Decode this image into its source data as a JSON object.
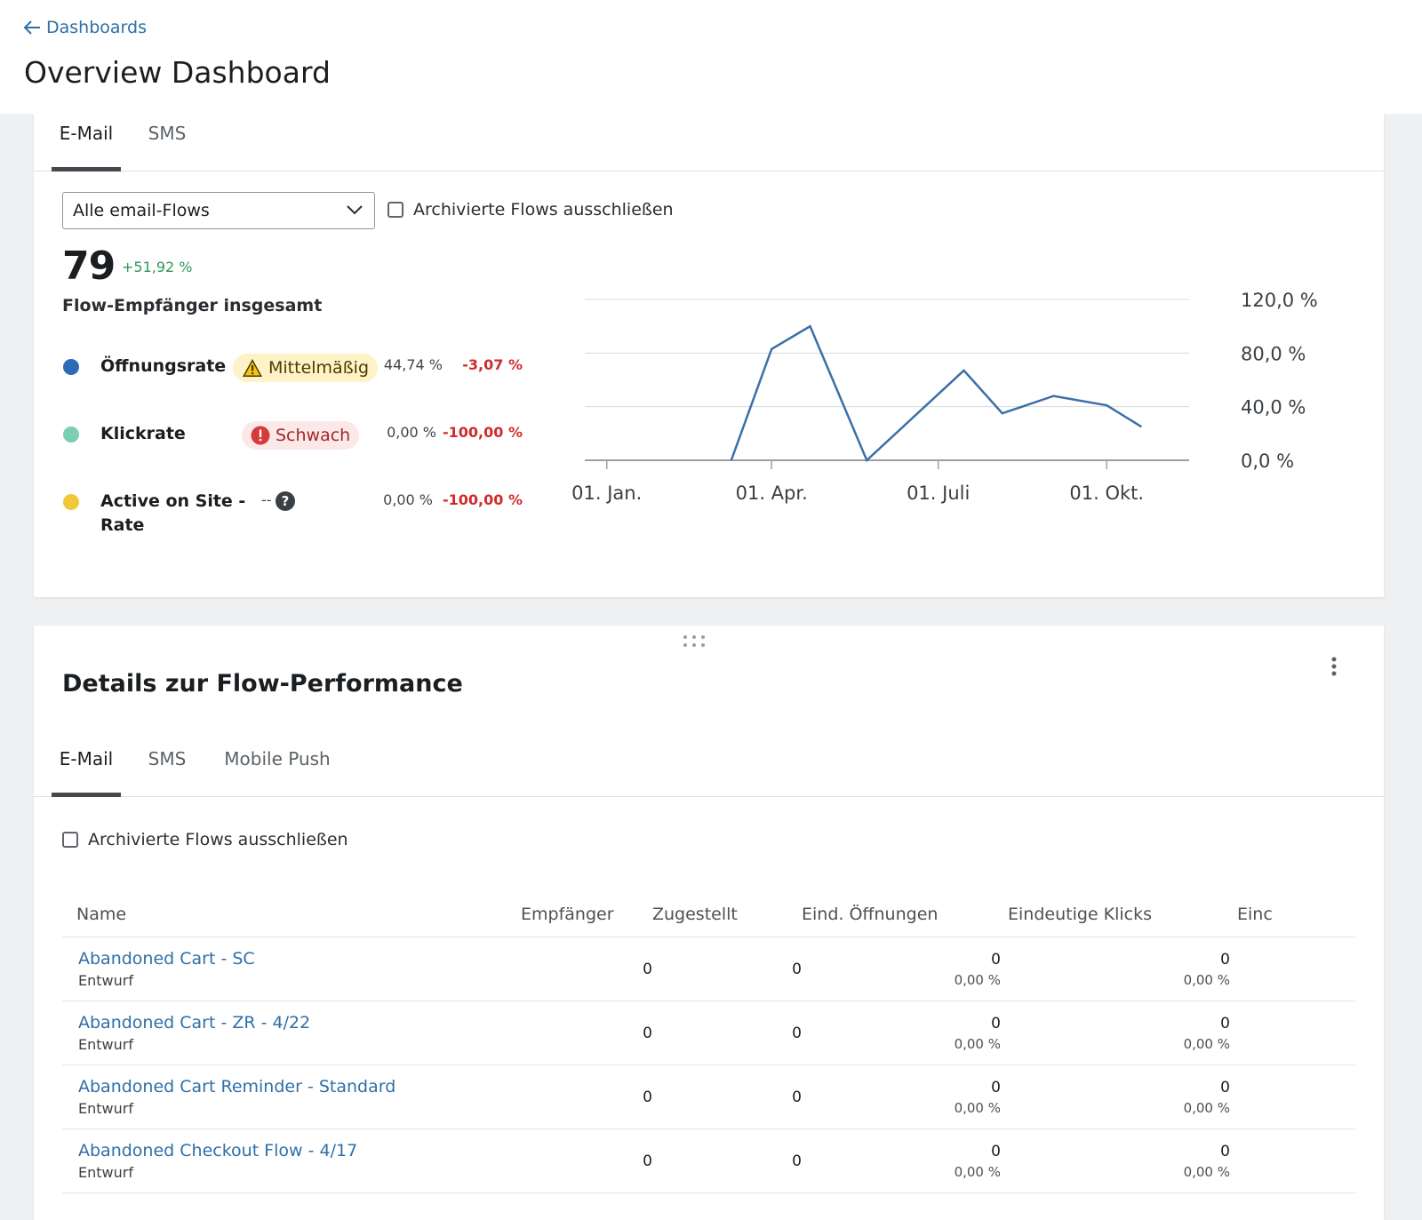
{
  "header": {
    "back_label": "Dashboards",
    "title": "Overview Dashboard"
  },
  "overview_card": {
    "tabs": [
      {
        "label": "E-Mail",
        "active": true
      },
      {
        "label": "SMS",
        "active": false
      }
    ],
    "flow_select": {
      "value": "Alle email-Flows"
    },
    "exclude_archived": {
      "label": "Archivierte Flows ausschließen",
      "checked": false
    },
    "total": {
      "value": "79",
      "change": "+51,92 %",
      "label": "Flow-Empfänger insgesamt"
    },
    "metrics": [
      {
        "name": "Öffnungsrate",
        "color": "#2f6ab5",
        "badge": "Mittelmäßig",
        "badge_type": "warning",
        "value": "44,74 %",
        "change": "-3,07 %"
      },
      {
        "name": "Klickrate",
        "color": "#7ccfb0",
        "badge": "Schwach",
        "badge_type": "danger",
        "value": "0,00 %",
        "change": "-100,00 %"
      },
      {
        "name_line1": "Active on Site -",
        "name_line2": "Rate",
        "color": "#f0c93a",
        "badge": "--",
        "badge_type": "none",
        "value": "0,00 %",
        "change": "-100,00 %"
      }
    ]
  },
  "chart_data": {
    "type": "line",
    "x_ticks": [
      "01. Jan.",
      "01. Apr.",
      "01. Juli",
      "01. Okt."
    ],
    "y_ticks": [
      "120,0 %",
      "80,0 %",
      "40,0 %",
      "0,0 %"
    ],
    "ylim": [
      0,
      120
    ],
    "grid": true,
    "series": [
      {
        "color": "#3a6fa8",
        "x": [
          "2023-03-10",
          "2023-04-01",
          "2023-04-22",
          "2023-05-23",
          "2023-07-15",
          "2023-08-05",
          "2023-09-02",
          "2023-10-01",
          "2023-10-20"
        ],
        "values": [
          0,
          83,
          100,
          0,
          67,
          35,
          48,
          41,
          25
        ]
      }
    ]
  },
  "performance_card": {
    "title": "Details zur Flow-Performance",
    "tabs": [
      {
        "label": "E-Mail",
        "active": true
      },
      {
        "label": "SMS",
        "active": false
      },
      {
        "label": "Mobile Push",
        "active": false
      }
    ],
    "exclude_archived": {
      "label": "Archivierte Flows ausschließen",
      "checked": false
    },
    "columns": [
      "Name",
      "Empfänger",
      "Zugestellt",
      "Eind. Öffnungen",
      "Eindeutige Klicks",
      "Einc"
    ],
    "rows": [
      {
        "name": "Abandoned Cart - SC",
        "status": "Entwurf",
        "recipients": "0",
        "delivered": "0",
        "opens": "0",
        "opens_pct": "0,00 %",
        "clicks": "0",
        "clicks_pct": "0,00 %"
      },
      {
        "name": "Abandoned Cart - ZR - 4/22",
        "status": "Entwurf",
        "recipients": "0",
        "delivered": "0",
        "opens": "0",
        "opens_pct": "0,00 %",
        "clicks": "0",
        "clicks_pct": "0,00 %"
      },
      {
        "name": "Abandoned Cart Reminder - Standard",
        "status": "Entwurf",
        "recipients": "0",
        "delivered": "0",
        "opens": "0",
        "opens_pct": "0,00 %",
        "clicks": "0",
        "clicks_pct": "0,00 %"
      },
      {
        "name": "Abandoned Checkout Flow - 4/17",
        "status": "Entwurf",
        "recipients": "0",
        "delivered": "0",
        "opens": "0",
        "opens_pct": "0,00 %",
        "clicks": "0",
        "clicks_pct": "0,00 %"
      }
    ]
  }
}
